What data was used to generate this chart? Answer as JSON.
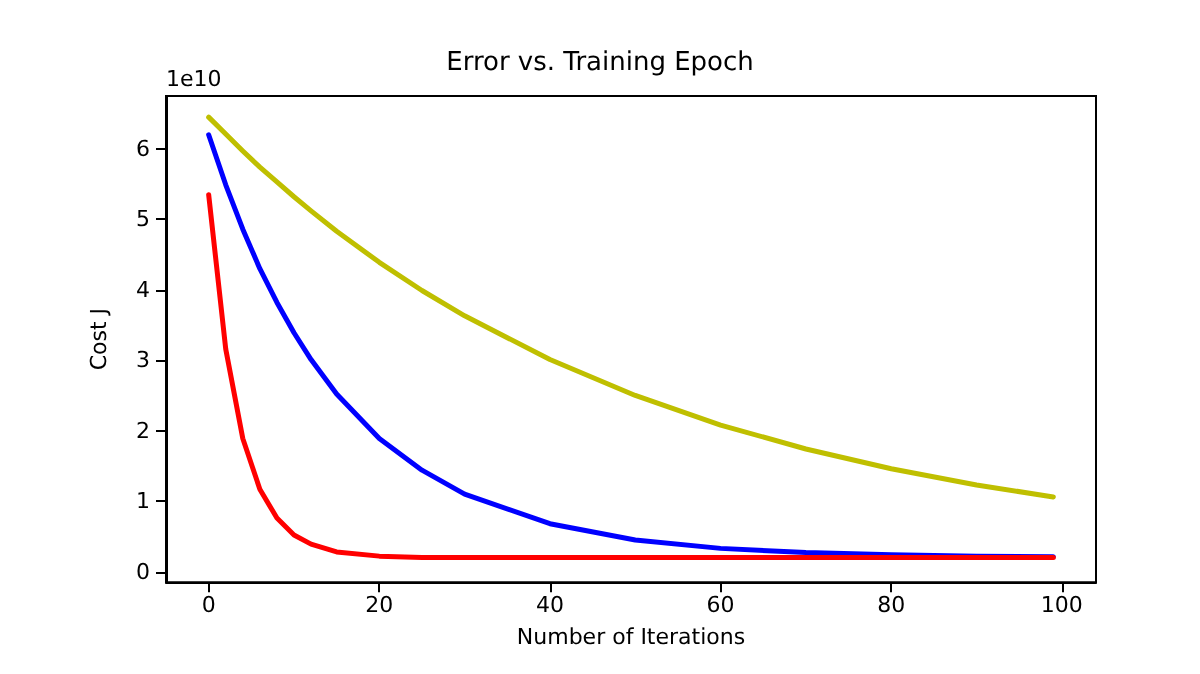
{
  "chart_data": {
    "type": "line",
    "title": "Error vs. Training Epoch",
    "xlabel": "Number of Iterations",
    "ylabel": "Cost J",
    "annotations": [
      "1e10"
    ],
    "x": [
      0,
      2,
      4,
      6,
      8,
      10,
      12,
      15,
      20,
      25,
      30,
      40,
      50,
      60,
      70,
      80,
      90,
      99
    ],
    "series": [
      {
        "color": "#bfbf00",
        "values": [
          6.45,
          6.21,
          5.97,
          5.74,
          5.53,
          5.32,
          5.12,
          4.83,
          4.39,
          3.99,
          3.63,
          3.01,
          2.5,
          2.08,
          1.74,
          1.46,
          1.23,
          1.06
        ]
      },
      {
        "color": "#0000ff",
        "values": [
          6.2,
          5.49,
          4.86,
          4.3,
          3.82,
          3.39,
          3.01,
          2.52,
          1.89,
          1.44,
          1.1,
          0.68,
          0.45,
          0.33,
          0.27,
          0.24,
          0.22,
          0.21
        ]
      },
      {
        "color": "#ff0000",
        "values": [
          5.35,
          3.16,
          1.89,
          1.17,
          0.76,
          0.52,
          0.39,
          0.28,
          0.22,
          0.2,
          0.2,
          0.2,
          0.2,
          0.2,
          0.2,
          0.2,
          0.2,
          0.2
        ]
      }
    ],
    "xlim": [
      -5,
      104
    ],
    "xticks": [
      0,
      20,
      40,
      60,
      80,
      100
    ],
    "ylim": [
      -0.15,
      6.75
    ],
    "yticks": [
      0,
      1,
      2,
      3,
      4,
      5,
      6
    ],
    "grid": false,
    "marker": "none",
    "line_style": "solid"
  }
}
